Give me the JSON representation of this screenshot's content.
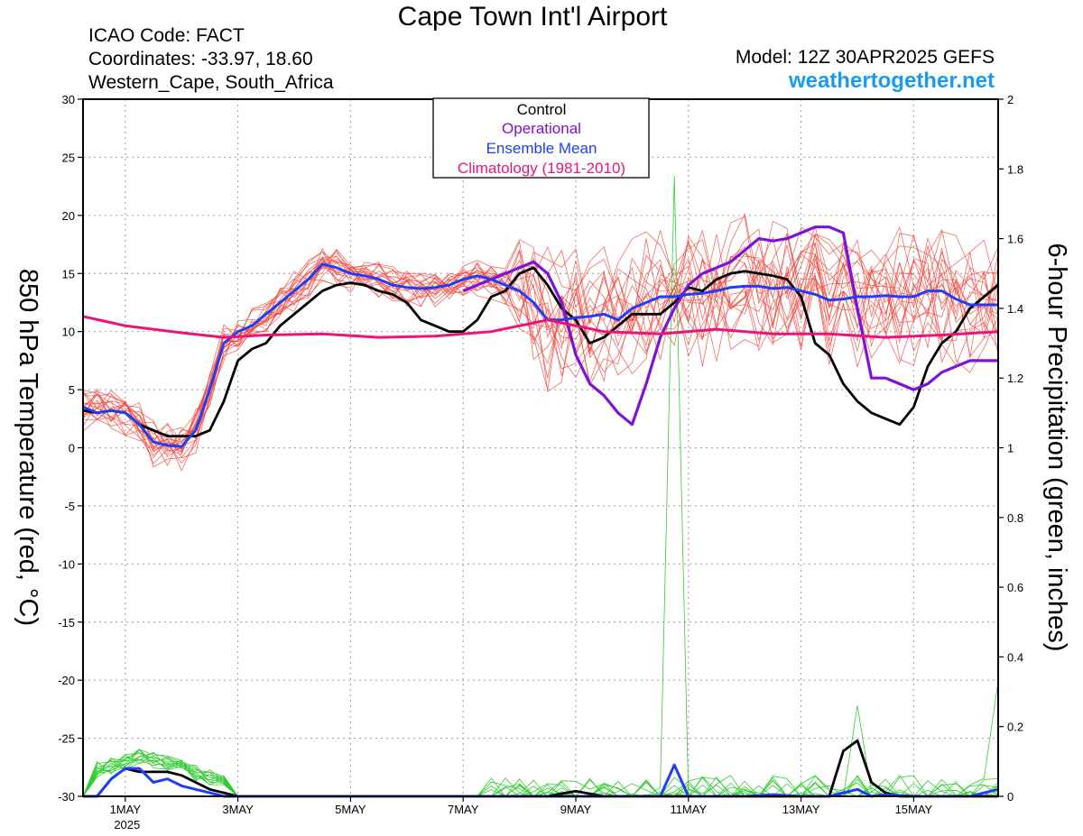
{
  "header": {
    "title": "Cape Town Int'l Airport",
    "icao": "ICAO Code: FACT",
    "coordinates": "Coordinates: -33.97, 18.60",
    "region": "Western_Cape, South_Africa",
    "model": "Model: 12Z 30APR2025 GEFS",
    "site": "weathertogether.net"
  },
  "colors": {
    "ensemble": "#f0473c",
    "control": "#000000",
    "operational": "#7f12d9",
    "mean": "#1f3ef5",
    "climatology": "#e8157a",
    "precip": "#2fcc2f",
    "site": "#1a9bef"
  },
  "chart_data": {
    "type": "line",
    "title": "Cape Town Int'l Airport",
    "xlabel": "",
    "ylabel": "850 hPa Temperature (red, °C)",
    "y2label": "6-hour Precipitation (green, inches)",
    "xlim": [
      0.25,
      16.5
    ],
    "ylim": [
      -30,
      30
    ],
    "y2lim": [
      0,
      2
    ],
    "x_ticks": [
      {
        "x": 1,
        "label": "1MAY"
      },
      {
        "x": 3,
        "label": "3MAY"
      },
      {
        "x": 5,
        "label": "5MAY"
      },
      {
        "x": 7,
        "label": "7MAY"
      },
      {
        "x": 9,
        "label": "9MAY"
      },
      {
        "x": 11,
        "label": "11MAY"
      },
      {
        "x": 13,
        "label": "13MAY"
      },
      {
        "x": 15,
        "label": "15MAY"
      }
    ],
    "x_sublabel": "2025",
    "y_ticks": [
      -30,
      -25,
      -20,
      -15,
      -10,
      -5,
      0,
      5,
      10,
      15,
      20,
      25,
      30
    ],
    "y2_ticks": [
      "0",
      "0.2",
      "0.4",
      "0.6",
      "0.8",
      "1",
      "1.2",
      "1.4",
      "1.6",
      "1.8",
      "2"
    ],
    "grid": true,
    "legend": {
      "position": "top-center",
      "entries": [
        "Control",
        "Operational",
        "Ensemble Mean",
        "Climatology (1981-2010)"
      ]
    },
    "series": [
      {
        "name": "Control",
        "axis": "temperature",
        "x": [
          0.25,
          0.5,
          0.75,
          1,
          1.25,
          1.5,
          1.75,
          2,
          2.25,
          2.5,
          2.75,
          3,
          3.25,
          3.5,
          3.75,
          4,
          4.25,
          4.5,
          4.75,
          5,
          5.25,
          5.5,
          5.75,
          6,
          6.25,
          6.5,
          6.75,
          7,
          7.25,
          7.5,
          7.75,
          8,
          8.25,
          8.5,
          8.75,
          9,
          9.25,
          9.5,
          9.75,
          10,
          10.25,
          10.5,
          10.75,
          11,
          11.25,
          11.5,
          11.75,
          12,
          12.25,
          12.5,
          12.75,
          13,
          13.25,
          13.5,
          13.75,
          14,
          14.25,
          14.5,
          14.75,
          15,
          15.25,
          15.5,
          15.75,
          16,
          16.25,
          16.5
        ],
        "values": [
          3.2,
          3,
          3.2,
          3,
          2,
          1.5,
          1,
          1,
          1,
          1.5,
          4,
          7.5,
          8.5,
          9,
          10.5,
          11.5,
          12.5,
          13.5,
          14,
          14.2,
          14,
          13.5,
          13.2,
          12.5,
          11,
          10.5,
          10,
          10,
          11,
          13,
          13.5,
          15,
          15.5,
          14,
          12,
          11,
          9,
          9.5,
          10.5,
          11.5,
          11.5,
          11.5,
          12.5,
          13.8,
          13.5,
          14.5,
          15,
          15.2,
          15,
          14.8,
          14.5,
          13,
          9,
          8,
          5.5,
          4,
          3,
          2.5,
          2,
          3.5,
          7,
          9,
          10,
          12,
          13,
          14
        ]
      },
      {
        "name": "Operational",
        "axis": "temperature",
        "x": [
          7,
          7.25,
          7.5,
          7.75,
          8,
          8.25,
          8.5,
          8.75,
          9,
          9.25,
          9.5,
          9.75,
          10,
          10.25,
          10.5,
          10.75,
          11,
          11.25,
          11.5,
          11.75,
          12,
          12.25,
          12.5,
          12.75,
          13,
          13.25,
          13.5,
          13.75,
          14,
          14.25,
          14.5,
          14.75,
          15,
          15.25,
          15.5,
          15.75,
          16,
          16.25,
          16.5
        ],
        "values": [
          13.5,
          14,
          14.5,
          15,
          15.5,
          16,
          15,
          12.5,
          8,
          5.5,
          4.5,
          3,
          2,
          5.5,
          9.5,
          12,
          14,
          15,
          15.5,
          16,
          17,
          18,
          17.8,
          18,
          18.5,
          19,
          19,
          18.5,
          12,
          6,
          6,
          5.5,
          5,
          5.5,
          6.5,
          7,
          7.5,
          7.5,
          7.5
        ]
      },
      {
        "name": "Ensemble Mean",
        "axis": "temperature",
        "x": [
          0.25,
          0.5,
          0.75,
          1,
          1.25,
          1.5,
          1.75,
          2,
          2.25,
          2.5,
          2.75,
          3,
          3.25,
          3.5,
          3.75,
          4,
          4.25,
          4.5,
          4.75,
          5,
          5.25,
          5.5,
          5.75,
          6,
          6.25,
          6.5,
          6.75,
          7,
          7.25,
          7.5,
          7.75,
          8,
          8.25,
          8.5,
          8.75,
          9,
          9.25,
          9.5,
          9.75,
          10,
          10.25,
          10.5,
          10.75,
          11,
          11.25,
          11.5,
          11.75,
          12,
          12.25,
          12.5,
          12.75,
          13,
          13.25,
          13.5,
          13.75,
          14,
          14.25,
          14.5,
          14.75,
          15,
          15.25,
          15.5,
          15.75,
          16,
          16.25,
          16.5
        ],
        "values": [
          3.5,
          3,
          3.2,
          3,
          2,
          0.5,
          0.2,
          0.1,
          1.5,
          5,
          9,
          10,
          10.5,
          11.5,
          12.5,
          13.5,
          14.5,
          15.8,
          15.5,
          15,
          14.8,
          14.5,
          14,
          13.8,
          13.7,
          13.8,
          14,
          14.5,
          14.8,
          14.5,
          14,
          13.5,
          12.5,
          11,
          11,
          11.2,
          11.3,
          11.5,
          11,
          12,
          12.5,
          13,
          13,
          13.2,
          13.3,
          13.5,
          13.8,
          13.9,
          13.9,
          13.7,
          13.8,
          13.5,
          13.2,
          12.7,
          12.8,
          13,
          13,
          13.1,
          13,
          13,
          13.5,
          13.5,
          12.8,
          12.3,
          12.3,
          12.3
        ]
      },
      {
        "name": "Climatology (1981-2010)",
        "axis": "temperature",
        "x": [
          0.25,
          1,
          2,
          2.75,
          3.5,
          4.5,
          5.5,
          6.5,
          7.5,
          8.5,
          9.5,
          10.5,
          11.5,
          12.5,
          13.5,
          14.5,
          15.5,
          16.5
        ],
        "values": [
          11.3,
          10.5,
          9.9,
          9.5,
          9.7,
          9.8,
          9.5,
          9.6,
          10,
          11,
          10,
          9.8,
          10.2,
          9.8,
          9.8,
          9.5,
          9.7,
          10
        ]
      },
      {
        "name": "Control",
        "axis": "precipitation",
        "x": [
          0.25,
          0.5,
          0.75,
          1,
          1.25,
          1.5,
          1.75,
          2,
          2.25,
          2.5,
          2.75,
          3,
          7,
          8.5,
          9,
          9.5,
          10,
          10.5,
          11,
          13.5,
          13.75,
          14,
          14.25,
          14.5,
          14.75,
          15,
          16.5
        ],
        "values": [
          0,
          0,
          0.05,
          0.08,
          0.07,
          0.07,
          0.07,
          0.06,
          0.04,
          0.02,
          0.01,
          0,
          0,
          0,
          0.015,
          0,
          0,
          0,
          0,
          0,
          0.13,
          0.16,
          0.04,
          0.01,
          0,
          0,
          0
        ]
      },
      {
        "name": "Ensemble Mean",
        "axis": "precipitation",
        "x": [
          0.25,
          0.5,
          0.75,
          1,
          1.25,
          1.5,
          1.75,
          2,
          2.25,
          2.5,
          2.75,
          3,
          9,
          10,
          10.5,
          10.75,
          11,
          11.5,
          12,
          12.5,
          13,
          13.5,
          14,
          14.25,
          14.5,
          15,
          16,
          16.5
        ],
        "values": [
          0,
          0,
          0.05,
          0.08,
          0.08,
          0.04,
          0.05,
          0.03,
          0.02,
          0.01,
          0,
          0,
          0,
          0,
          0,
          0.09,
          0,
          0,
          0,
          0.005,
          0,
          0,
          0.02,
          0,
          0.005,
          0,
          0,
          0.02
        ]
      }
    ]
  }
}
